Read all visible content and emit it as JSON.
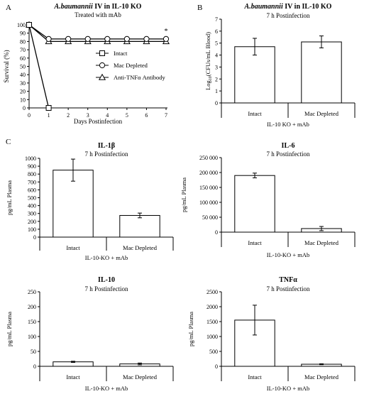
{
  "panel_labels": [
    "A",
    "B",
    "C"
  ],
  "chart_data": [
    {
      "id": "A",
      "type": "line",
      "title": "A.baumannii IV in IL-10 KO",
      "title_italic_part": "A.baumannii",
      "title_rest": " IV in IL-10 KO",
      "subtitle": "Treated with mAb",
      "xlabel": "Days Postinfection",
      "ylabel": "Survival (%)",
      "x": [
        0,
        1,
        2,
        3,
        4,
        5,
        6,
        7
      ],
      "xlim": [
        0,
        7
      ],
      "ylim": [
        0,
        100
      ],
      "yticks": [
        0,
        10,
        20,
        30,
        40,
        50,
        60,
        70,
        80,
        90,
        100
      ],
      "series": [
        {
          "name": "Intact",
          "marker": "square",
          "x": [
            0,
            1
          ],
          "values": [
            100,
            0
          ]
        },
        {
          "name": "Mac Depleted",
          "marker": "circle",
          "x": [
            0,
            1,
            2,
            3,
            4,
            5,
            6,
            7
          ],
          "values": [
            100,
            83,
            83,
            83,
            83,
            83,
            83,
            83
          ]
        },
        {
          "name": "Anti-TNFα Antibody",
          "marker": "triangle",
          "x": [
            0,
            1,
            2,
            3,
            4,
            5,
            6,
            7
          ],
          "values": [
            100,
            80,
            80,
            80,
            80,
            80,
            80,
            80
          ]
        }
      ],
      "annotations": [
        "*"
      ],
      "legend": "right"
    },
    {
      "id": "B",
      "type": "bar",
      "title": "A.baumannii IV in IL-10 KO",
      "title_italic_part": "A.baumannii",
      "title_rest": " IV in IL-10 KO",
      "subtitle": "7 h Postinfection",
      "ylabel_main": "Log",
      "ylabel_sub": "10",
      "ylabel_rest": "(CFUs/mL Blood)",
      "xlabel": "IL-10 KO + mAb",
      "categories": [
        "Intact",
        "Mac Depleted"
      ],
      "values": [
        4.7,
        5.1
      ],
      "errors": [
        0.7,
        0.5
      ],
      "ylim": [
        0,
        7
      ],
      "yticks": [
        "0",
        "1",
        "2",
        "3",
        "4",
        "5",
        "6",
        "7"
      ]
    },
    {
      "id": "C1",
      "type": "bar",
      "title": "IL-1β",
      "subtitle": "7 h Postinfection",
      "ylabel": "pg/mL Plasma",
      "xlabel": "IL-10-KO + mAb",
      "categories": [
        "Intact",
        "Mac Depleted"
      ],
      "values": [
        850,
        275
      ],
      "errors": [
        140,
        30
      ],
      "ylim": [
        0,
        1000
      ],
      "yticks": [
        "0",
        "100",
        "200",
        "300",
        "400",
        "500",
        "600",
        "700",
        "800",
        "900",
        "1000"
      ]
    },
    {
      "id": "C2",
      "type": "bar",
      "title": "IL-6",
      "subtitle": "7 h Postinfection",
      "ylabel": "pg/mL Plasma",
      "xlabel": "IL-10-KO + mAb",
      "categories": [
        "Intact",
        "Mac Depleted"
      ],
      "values": [
        190000,
        12000
      ],
      "errors": [
        8000,
        7000
      ],
      "ylim": [
        0,
        250000
      ],
      "yticks": [
        "0",
        "50 000",
        "100 000",
        "150 000",
        "200 000",
        "250 000"
      ]
    },
    {
      "id": "C3",
      "type": "bar",
      "title": "IL-10",
      "subtitle": "7 h Postinfection",
      "ylabel": "pg/mL Plasma",
      "xlabel": "IL-10-KO + mAb",
      "categories": [
        "Intact",
        "Mac Depleted"
      ],
      "values": [
        15,
        8
      ],
      "errors": [
        2,
        3
      ],
      "ylim": [
        0,
        250
      ],
      "yticks": [
        "0",
        "50",
        "100",
        "150",
        "200",
        "250"
      ]
    },
    {
      "id": "C4",
      "type": "bar",
      "title": "TNFα",
      "subtitle": "7 h Postinfection",
      "ylabel": "pg/mL Plasma",
      "xlabel": "IL-10-KO + mAb",
      "categories": [
        "Intact",
        "Mac Depleted"
      ],
      "values": [
        1550,
        70
      ],
      "errors": [
        500,
        15
      ],
      "ylim": [
        0,
        2500
      ],
      "yticks": [
        "0",
        "500",
        "1000",
        "1500",
        "2000",
        "2500"
      ]
    }
  ]
}
